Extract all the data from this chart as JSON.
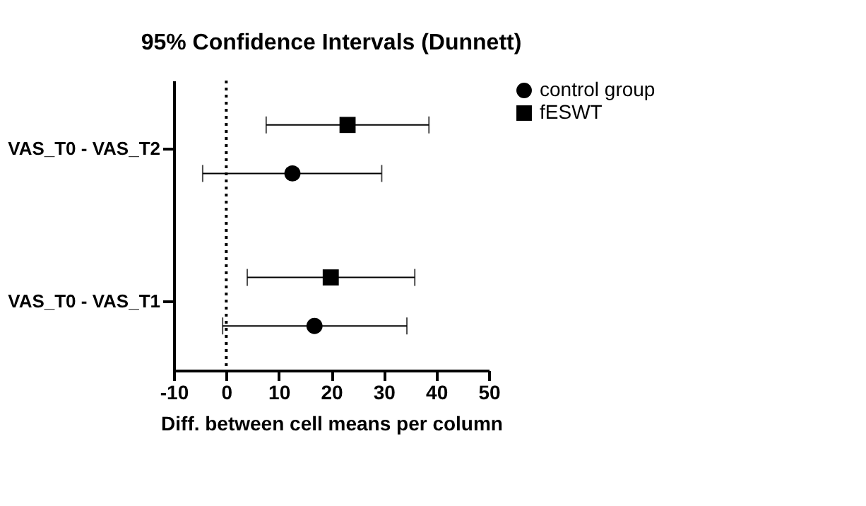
{
  "chart_data": {
    "type": "scatter",
    "orientation": "horizontal",
    "title": "95% Confidence Intervals (Dunnett)",
    "xlabel": "Diff. between cell means per column",
    "categories": [
      "VAS_T0 - VAS_T2",
      "VAS_T0 - VAS_T1"
    ],
    "series": [
      {
        "name": "control group",
        "color": "#000000",
        "marker": "circle",
        "values": [
          12.6,
          16.8
        ],
        "errors": [
          [
            -4.5,
            29.6
          ],
          [
            -0.7,
            34.4
          ]
        ]
      },
      {
        "name": "fESWT",
        "color": "#000000",
        "marker": "square",
        "values": [
          23.1,
          19.9
        ],
        "errors": [
          [
            7.6,
            38.6
          ],
          [
            4.0,
            35.9
          ]
        ]
      }
    ],
    "xlim": [
      -10,
      50
    ],
    "xticks": [
      -10,
      0,
      10,
      20,
      30,
      40,
      50
    ],
    "ref_lines": [
      {
        "axis": "x",
        "value": 0,
        "line_style": "dotted"
      }
    ],
    "grid": false,
    "legend": "top right"
  }
}
